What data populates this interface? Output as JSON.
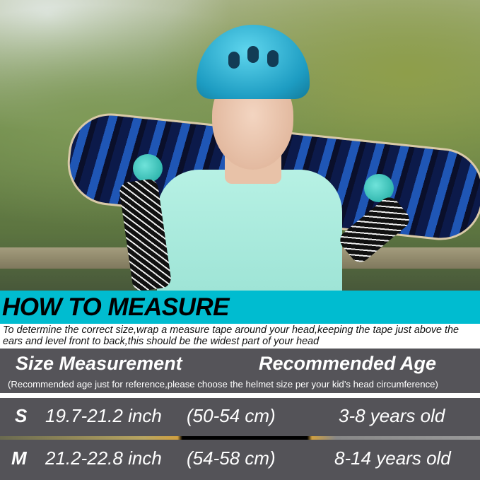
{
  "heading": "HOW TO MEASURE",
  "intro": "To determine the correct size,wrap a measure tape around your head,keeping the tape just above the ears and level front to back,this should be the widest part of your head",
  "table": {
    "col1": "Size Measurement",
    "col2": "Recommended Age",
    "note": "(Recommended age just for reference,please choose the helmet size  per your  kid’s head circumference)",
    "rows": [
      {
        "size": "S",
        "inch": "19.7-21.2 inch",
        "cm": "(50-54 cm)",
        "age": "3-8 years old"
      },
      {
        "size": "M",
        "inch": "21.2-22.8 inch",
        "cm": "(54-58 cm)",
        "age": "8-14 years old"
      }
    ]
  },
  "colors": {
    "band": "#00bcd0",
    "table": "#545358",
    "helmet": "#2fb6d8"
  }
}
